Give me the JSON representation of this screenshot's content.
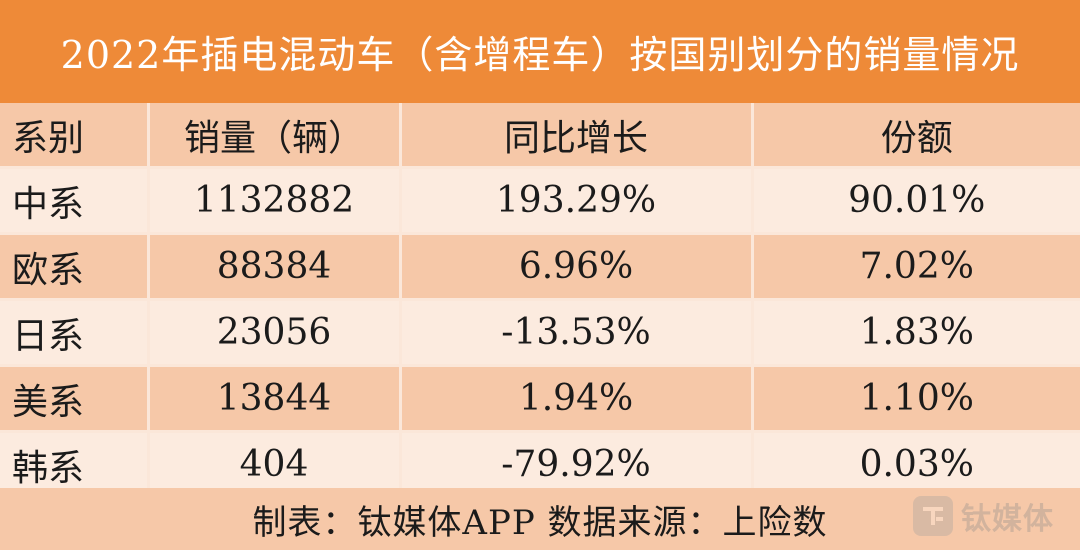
{
  "title": "2022年插电混动车（含增程车）按国别划分的销量情况",
  "table": {
    "headers": [
      "系别",
      "销量（辆）",
      "同比增长",
      "份额"
    ],
    "rows": [
      [
        "中系",
        "1132882",
        "193.29%",
        "90.01%"
      ],
      [
        "欧系",
        "88384",
        "6.96%",
        "7.02%"
      ],
      [
        "日系",
        "23056",
        "-13.53%",
        "1.83%"
      ],
      [
        "美系",
        "13844",
        "1.94%",
        "1.10%"
      ],
      [
        "韩系",
        "404",
        "-79.92%",
        "0.03%"
      ]
    ]
  },
  "footer": "制表：钛媒体APP 数据来源：上险数",
  "watermark": {
    "text": "钛媒体",
    "icon": "tmtpost-logo-icon"
  },
  "colors": {
    "title_bg": "#ee8a38",
    "title_text": "#ffffff",
    "row_dark": "#f6c8a8",
    "row_light": "#fcebdf"
  }
}
